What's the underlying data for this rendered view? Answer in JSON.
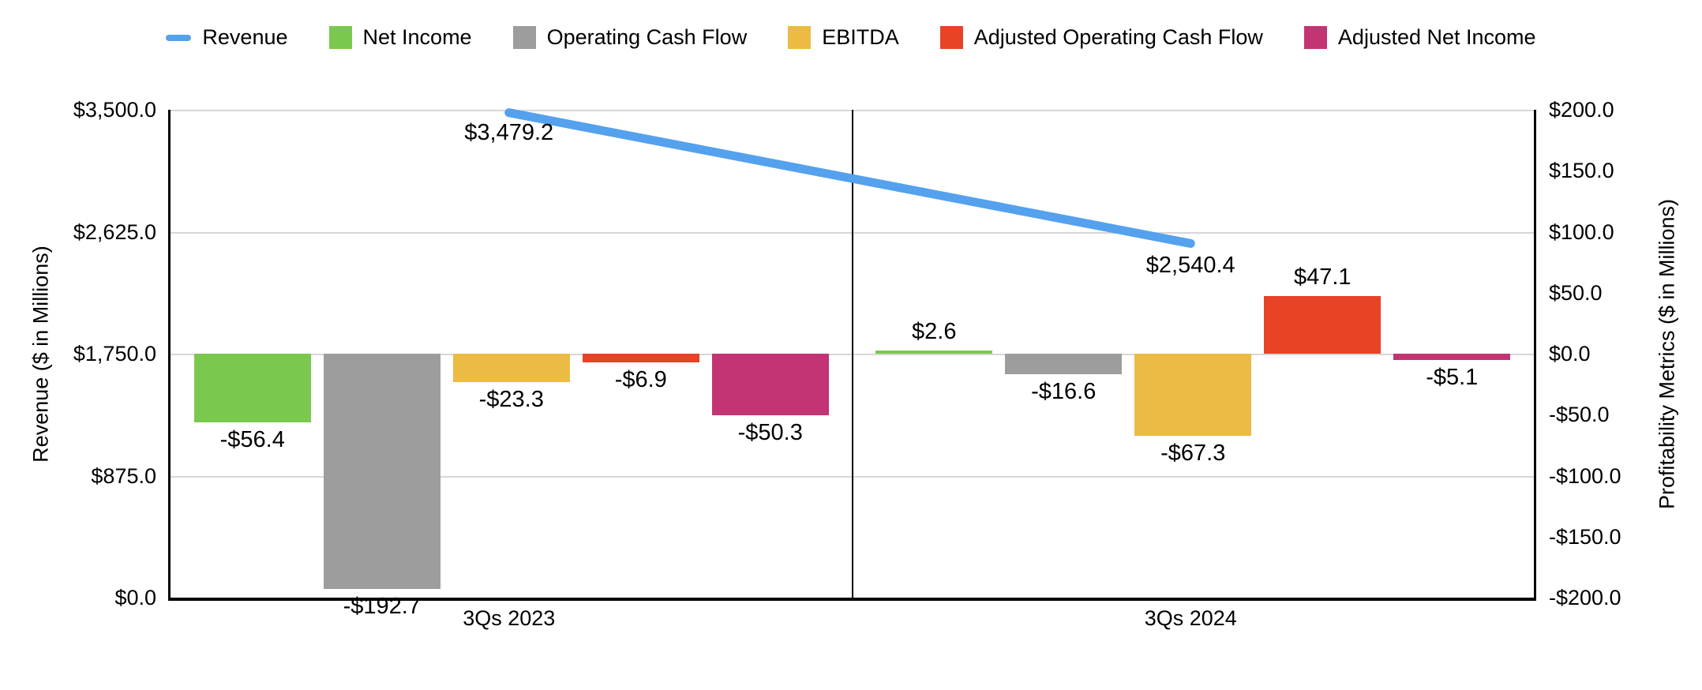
{
  "legend": {
    "items": [
      {
        "label": "Revenue",
        "marker": "line",
        "color": "#54A1EE"
      },
      {
        "label": "Net Income",
        "marker": "square",
        "color": "#7BC84F"
      },
      {
        "label": "Operating Cash Flow",
        "marker": "square",
        "color": "#9D9D9D"
      },
      {
        "label": "EBITDA",
        "marker": "square",
        "color": "#ECBB43"
      },
      {
        "label": "Adjusted Operating Cash Flow",
        "marker": "square",
        "color": "#E84227"
      },
      {
        "label": "Adjusted Net Income",
        "marker": "square",
        "color": "#C23473"
      }
    ]
  },
  "chart_data": {
    "type": "combo-bar-line",
    "categories": [
      "3Qs 2023",
      "3Qs 2024"
    ],
    "left_axis": {
      "label": "Revenue ($ in Millions)",
      "range": [
        0,
        3500
      ],
      "ticks": [
        "$3,500.0",
        "$2,625.0",
        "$1,750.0",
        "$875.0",
        "$0.0"
      ],
      "tick_values": [
        3500,
        2625,
        1750,
        875,
        0
      ]
    },
    "right_axis": {
      "label": "Profitability Metrics ($ in Millions)",
      "range": [
        -200,
        200
      ],
      "ticks": [
        "$200.0",
        "$150.0",
        "$100.0",
        "$50.0",
        "$0.0",
        "-$50.0",
        "-$100.0",
        "-$150.0",
        "-$200.0"
      ],
      "tick_values": [
        200,
        150,
        100,
        50,
        0,
        -50,
        -100,
        -150,
        -200
      ]
    },
    "line_series": {
      "name": "Revenue",
      "axis": "left",
      "color": "#54A1EE",
      "values": [
        3479.2,
        2540.4
      ],
      "labels": [
        "$3,479.2",
        "$2,540.4"
      ]
    },
    "bar_series": [
      {
        "name": "Net Income",
        "color": "#7BC84F",
        "values": [
          -56.4,
          2.6
        ],
        "labels": [
          "-$56.4",
          "$2.6"
        ]
      },
      {
        "name": "Operating Cash Flow",
        "color": "#9D9D9D",
        "values": [
          -192.7,
          -16.6
        ],
        "labels": [
          "-$192.7",
          "-$16.6"
        ]
      },
      {
        "name": "EBITDA",
        "color": "#ECBB43",
        "values": [
          -23.3,
          -67.3
        ],
        "labels": [
          "-$23.3",
          "-$67.3"
        ]
      },
      {
        "name": "Adjusted Operating Cash Flow",
        "color": "#E84227",
        "values": [
          -6.9,
          47.1
        ],
        "labels": [
          "-$6.9",
          "$47.1"
        ]
      },
      {
        "name": "Adjusted Net Income",
        "color": "#C23473",
        "values": [
          -50.3,
          -5.1
        ],
        "labels": [
          "-$50.3",
          "-$5.1"
        ]
      }
    ],
    "grid": true,
    "legend_position": "top"
  }
}
